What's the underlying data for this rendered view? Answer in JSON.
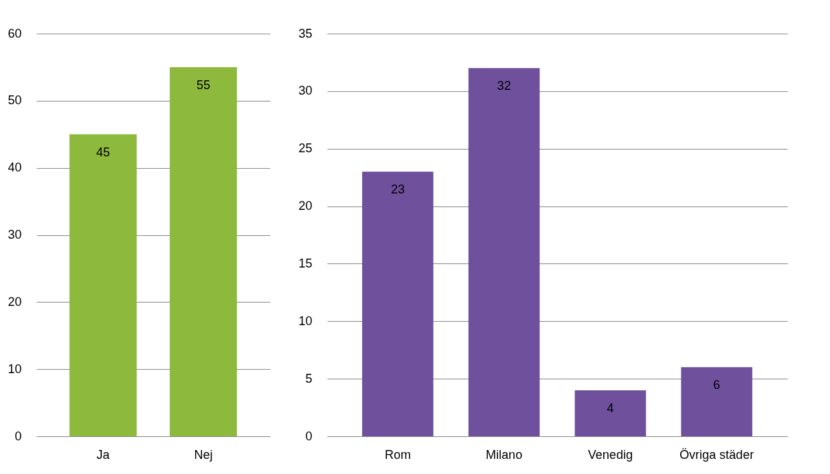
{
  "chart_data": [
    {
      "type": "bar",
      "categories": [
        "Ja",
        "Nej"
      ],
      "values": [
        45,
        55
      ],
      "color": "#8db93d",
      "ylim": [
        0,
        60
      ],
      "yticks": [
        0,
        10,
        20,
        30,
        40,
        50,
        60
      ],
      "grid": "y",
      "data_labels": true
    },
    {
      "type": "bar",
      "categories": [
        "Rom",
        "Milano",
        "Venedig",
        "Övriga städer"
      ],
      "values": [
        23,
        32,
        4,
        6
      ],
      "color": "#6f509c",
      "ylim": [
        0,
        35
      ],
      "yticks": [
        0,
        5,
        10,
        15,
        20,
        25,
        30,
        35
      ],
      "grid": "y",
      "data_labels": true
    }
  ]
}
